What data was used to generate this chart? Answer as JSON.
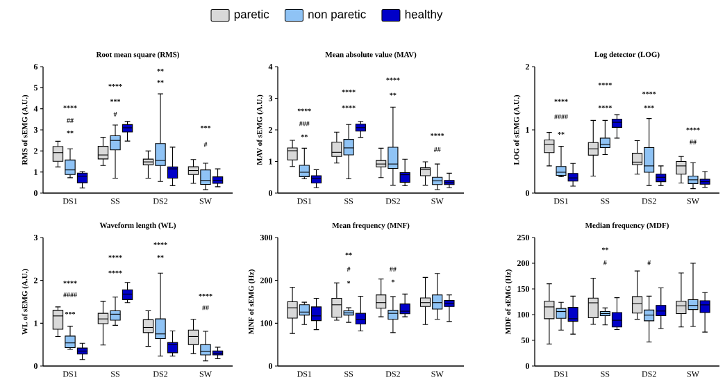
{
  "chart_data": [
    {
      "type": "box",
      "title": "Root mean square (RMS)",
      "ylabel": "RMS of sEMG (A.U.)",
      "categories": [
        "DS1",
        "SS",
        "DS2",
        "SW"
      ],
      "ylim": [
        0,
        6
      ],
      "yticks": [
        0,
        1,
        2,
        3,
        4,
        5,
        6
      ],
      "legend": "top",
      "series": [
        {
          "name": "paretic",
          "color": "#d9d9d9",
          "boxes": [
            {
              "low": 1.24,
              "q1": 1.51,
              "median": 1.92,
              "q3": 2.21,
              "high": 2.46
            },
            {
              "low": 1.31,
              "q1": 1.62,
              "median": 1.81,
              "q3": 2.22,
              "high": 2.65
            },
            {
              "low": 0.71,
              "q1": 1.34,
              "median": 1.48,
              "q3": 1.61,
              "high": 2.0
            },
            {
              "low": 0.46,
              "q1": 0.88,
              "median": 1.07,
              "q3": 1.25,
              "high": 1.59
            }
          ]
        },
        {
          "name": "non paretic",
          "color": "#8fc3f5",
          "boxes": [
            {
              "low": 0.73,
              "q1": 0.88,
              "median": 1.1,
              "q3": 1.57,
              "high": 2.1
            },
            {
              "low": 0.71,
              "q1": 2.05,
              "median": 2.5,
              "q3": 2.72,
              "high": 3.23
            },
            {
              "low": 0.55,
              "q1": 1.31,
              "median": 1.55,
              "q3": 2.35,
              "high": 4.71
            },
            {
              "low": 0.16,
              "q1": 0.41,
              "median": 0.6,
              "q3": 1.1,
              "high": 1.42
            }
          ]
        },
        {
          "name": "healthy",
          "color": "#0000c8",
          "boxes": [
            {
              "low": 0.24,
              "q1": 0.49,
              "median": 0.8,
              "q3": 0.95,
              "high": 1.02
            },
            {
              "low": 2.47,
              "q1": 2.9,
              "median": 3.1,
              "q3": 3.25,
              "high": 3.4
            },
            {
              "low": 0.35,
              "q1": 0.71,
              "median": 1.15,
              "q3": 1.24,
              "high": 2.18
            },
            {
              "low": 0.3,
              "q1": 0.46,
              "median": 0.6,
              "q3": 0.77,
              "high": 1.15
            }
          ]
        }
      ],
      "annotations": [
        "****",
        "##",
        "**",
        "****",
        "***",
        "#",
        "**",
        "**",
        "***",
        "#"
      ]
    },
    {
      "type": "box",
      "title": "Mean absolute value (MAV)",
      "ylabel": "MAV of sEMG (A.U.)",
      "categories": [
        "DS1",
        "SS",
        "DS2",
        "SW"
      ],
      "ylim": [
        0,
        4
      ],
      "yticks": [
        0,
        1,
        2,
        3,
        4
      ],
      "series": [
        {
          "color": "#d9d9d9",
          "boxes": [
            {
              "low": 0.84,
              "q1": 1.05,
              "median": 1.34,
              "q3": 1.43,
              "high": 1.67
            },
            {
              "low": 0.95,
              "q1": 1.16,
              "median": 1.29,
              "q3": 1.61,
              "high": 1.93
            },
            {
              "low": 0.49,
              "q1": 0.83,
              "median": 0.92,
              "q3": 1.03,
              "high": 1.42
            },
            {
              "low": 0.25,
              "q1": 0.55,
              "median": 0.74,
              "q3": 0.8,
              "high": 0.99
            }
          ]
        },
        {
          "color": "#8fc3f5",
          "boxes": [
            {
              "low": 0.45,
              "q1": 0.52,
              "median": 0.66,
              "q3": 0.88,
              "high": 1.42
            },
            {
              "low": 0.45,
              "q1": 1.21,
              "median": 1.43,
              "q3": 1.7,
              "high": 2.17
            },
            {
              "low": 0.25,
              "q1": 0.78,
              "median": 0.92,
              "q3": 1.45,
              "high": 2.72
            },
            {
              "low": 0.11,
              "q1": 0.27,
              "median": 0.39,
              "q3": 0.5,
              "high": 0.92
            }
          ]
        },
        {
          "color": "#0000c8",
          "boxes": [
            {
              "low": 0.17,
              "q1": 0.32,
              "median": 0.46,
              "q3": 0.55,
              "high": 0.74
            },
            {
              "low": 1.76,
              "q1": 1.96,
              "median": 2.07,
              "q3": 2.18,
              "high": 2.27
            },
            {
              "low": 0.23,
              "q1": 0.34,
              "median": 0.58,
              "q3": 0.65,
              "high": 1.07
            },
            {
              "low": 0.17,
              "q1": 0.27,
              "median": 0.33,
              "q3": 0.4,
              "high": 0.63
            }
          ]
        }
      ],
      "annotations": [
        "****",
        "###",
        "**",
        "****",
        "****",
        "****",
        "**",
        "****",
        "##"
      ]
    },
    {
      "type": "box",
      "title": "Log detector (LOG)",
      "ylabel": "LOG of sEMG (A.U.)",
      "categories": [
        "DS1",
        "SS",
        "DS2",
        "SW"
      ],
      "ylim": [
        0,
        2
      ],
      "yticks": [
        0,
        1,
        2
      ],
      "series": [
        {
          "color": "#d9d9d9",
          "boxes": [
            {
              "low": 0.43,
              "q1": 0.64,
              "median": 0.77,
              "q3": 0.84,
              "high": 0.96
            },
            {
              "low": 0.27,
              "q1": 0.6,
              "median": 0.7,
              "q3": 0.8,
              "high": 1.15
            },
            {
              "low": 0.3,
              "q1": 0.45,
              "median": 0.49,
              "q3": 0.63,
              "high": 0.83
            },
            {
              "low": 0.16,
              "q1": 0.3,
              "median": 0.43,
              "q3": 0.5,
              "high": 0.58
            }
          ]
        },
        {
          "color": "#8fc3f5",
          "boxes": [
            {
              "low": 0.26,
              "q1": 0.28,
              "median": 0.33,
              "q3": 0.42,
              "high": 0.74
            },
            {
              "low": 0.61,
              "q1": 0.72,
              "median": 0.77,
              "q3": 0.87,
              "high": 1.15
            },
            {
              "low": 0.12,
              "q1": 0.33,
              "median": 0.43,
              "q3": 0.72,
              "high": 1.18
            },
            {
              "low": 0.07,
              "q1": 0.15,
              "median": 0.21,
              "q3": 0.27,
              "high": 0.48
            }
          ]
        },
        {
          "color": "#0000c8",
          "boxes": [
            {
              "low": 0.11,
              "q1": 0.19,
              "median": 0.24,
              "q3": 0.31,
              "high": 0.47
            },
            {
              "low": 0.87,
              "q1": 1.04,
              "median": 1.12,
              "q3": 1.17,
              "high": 1.24
            },
            {
              "low": 0.12,
              "q1": 0.18,
              "median": 0.25,
              "q3": 0.3,
              "high": 0.43
            },
            {
              "low": 0.09,
              "q1": 0.14,
              "median": 0.18,
              "q3": 0.22,
              "high": 0.34
            }
          ]
        }
      ],
      "annotations": [
        "****",
        "####",
        "**",
        "****",
        "****",
        "****",
        "***",
        "****",
        "##"
      ]
    },
    {
      "type": "box",
      "title": "Waveform length (WL)",
      "ylabel": "WL of sEMG (A.U.)",
      "categories": [
        "DS1",
        "SS",
        "DS2",
        "SW"
      ],
      "ylim": [
        0,
        3
      ],
      "yticks": [
        0,
        1,
        2,
        3
      ],
      "series": [
        {
          "color": "#d9d9d9",
          "boxes": [
            {
              "low": 0.69,
              "q1": 0.86,
              "median": 1.17,
              "q3": 1.3,
              "high": 1.38
            },
            {
              "low": 0.49,
              "q1": 0.99,
              "median": 1.1,
              "q3": 1.23,
              "high": 1.51
            },
            {
              "low": 0.46,
              "q1": 0.78,
              "median": 0.9,
              "q3": 1.08,
              "high": 1.29
            },
            {
              "low": 0.29,
              "q1": 0.5,
              "median": 0.69,
              "q3": 0.84,
              "high": 1.09
            }
          ]
        },
        {
          "color": "#8fc3f5",
          "boxes": [
            {
              "low": 0.39,
              "q1": 0.43,
              "median": 0.54,
              "q3": 0.7,
              "high": 0.93
            },
            {
              "low": 0.95,
              "q1": 1.07,
              "median": 1.21,
              "q3": 1.29,
              "high": 1.61
            },
            {
              "low": 0.23,
              "q1": 0.64,
              "median": 0.75,
              "q3": 1.1,
              "high": 2.17
            },
            {
              "low": 0.12,
              "q1": 0.26,
              "median": 0.34,
              "q3": 0.5,
              "high": 0.81
            }
          ]
        },
        {
          "color": "#0000c8",
          "boxes": [
            {
              "low": 0.15,
              "q1": 0.28,
              "median": 0.35,
              "q3": 0.42,
              "high": 0.53
            },
            {
              "low": 1.48,
              "q1": 1.55,
              "median": 1.68,
              "q3": 1.78,
              "high": 1.95
            },
            {
              "low": 0.23,
              "q1": 0.31,
              "median": 0.5,
              "q3": 0.55,
              "high": 0.82
            },
            {
              "low": 0.17,
              "q1": 0.26,
              "median": 0.3,
              "q3": 0.35,
              "high": 0.44
            }
          ]
        }
      ],
      "annotations": [
        "****",
        "####",
        "***",
        "****",
        "****",
        "****",
        "**",
        "****",
        "##"
      ]
    },
    {
      "type": "box",
      "title": "Mean frequency (MNF)",
      "ylabel": "MNF of sEMG (Hz)",
      "categories": [
        "DS1",
        "SS",
        "DS2",
        "SW"
      ],
      "ylim": [
        0,
        300
      ],
      "yticks": [
        0,
        100,
        200,
        300
      ],
      "series": [
        {
          "color": "#d9d9d9",
          "boxes": [
            {
              "low": 76,
              "q1": 112,
              "median": 136,
              "q3": 150,
              "high": 184
            },
            {
              "low": 107,
              "q1": 114,
              "median": 143,
              "q3": 158,
              "high": 194
            },
            {
              "low": 115,
              "q1": 135,
              "median": 148,
              "q3": 166,
              "high": 203
            },
            {
              "low": 97,
              "q1": 139,
              "median": 148,
              "q3": 159,
              "high": 207
            }
          ]
        },
        {
          "color": "#8fc3f5",
          "boxes": [
            {
              "low": 97,
              "q1": 119,
              "median": 126,
              "q3": 143,
              "high": 149
            },
            {
              "low": 102,
              "q1": 119,
              "median": 124,
              "q3": 129,
              "high": 136
            },
            {
              "low": 78,
              "q1": 109,
              "median": 123,
              "q3": 130,
              "high": 162
            },
            {
              "low": 109,
              "q1": 133,
              "median": 148,
              "q3": 166,
              "high": 216
            }
          ]
        },
        {
          "color": "#0000c8",
          "boxes": [
            {
              "low": 85,
              "q1": 106,
              "median": 117,
              "q3": 138,
              "high": 158
            },
            {
              "low": 82,
              "q1": 98,
              "median": 108,
              "q3": 123,
              "high": 163
            },
            {
              "low": 115,
              "q1": 122,
              "median": 128,
              "q3": 145,
              "high": 168
            },
            {
              "low": 104,
              "q1": 139,
              "median": 146,
              "q3": 153,
              "high": 166
            }
          ]
        }
      ],
      "annotations": [
        "**",
        "#",
        "*",
        "##",
        "*"
      ]
    },
    {
      "type": "box",
      "title": "Median frequency (MDF)",
      "ylabel": "MDF of sEMG (Hz)",
      "categories": [
        "DS1",
        "SS",
        "DS2",
        "SW"
      ],
      "ylim": [
        0,
        250
      ],
      "yticks": [
        0,
        50,
        100,
        150,
        200,
        250
      ],
      "series": [
        {
          "color": "#d9d9d9",
          "boxes": [
            {
              "low": 43,
              "q1": 92,
              "median": 115,
              "q3": 126,
              "high": 160
            },
            {
              "low": 81,
              "q1": 94,
              "median": 123,
              "q3": 132,
              "high": 171
            },
            {
              "low": 91,
              "q1": 103,
              "median": 121,
              "q3": 135,
              "high": 185
            },
            {
              "low": 76,
              "q1": 102,
              "median": 117,
              "q3": 126,
              "high": 181
            }
          ]
        },
        {
          "color": "#8fc3f5",
          "boxes": [
            {
              "low": 70,
              "q1": 93,
              "median": 106,
              "q3": 112,
              "high": 124
            },
            {
              "low": 80,
              "q1": 98,
              "median": 102,
              "q3": 106,
              "high": 113
            },
            {
              "low": 47,
              "q1": 88,
              "median": 99,
              "q3": 109,
              "high": 136
            },
            {
              "low": 77,
              "q1": 110,
              "median": 118,
              "q3": 129,
              "high": 200
            }
          ]
        },
        {
          "color": "#0000c8",
          "boxes": [
            {
              "low": 62,
              "q1": 87,
              "median": 92,
              "q3": 114,
              "high": 136
            },
            {
              "low": 71,
              "q1": 76,
              "median": 89,
              "q3": 104,
              "high": 133
            },
            {
              "low": 73,
              "q1": 98,
              "median": 107,
              "q3": 118,
              "high": 152
            },
            {
              "low": 66,
              "q1": 104,
              "median": 119,
              "q3": 127,
              "high": 143
            }
          ]
        }
      ],
      "annotations": [
        "**",
        "#",
        "#"
      ]
    }
  ]
}
